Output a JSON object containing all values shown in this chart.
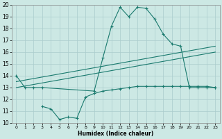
{
  "xlabel": "Humidex (Indice chaleur)",
  "xlim": [
    -0.5,
    23.5
  ],
  "ylim": [
    10,
    20
  ],
  "xticks": [
    0,
    1,
    2,
    3,
    4,
    5,
    6,
    7,
    8,
    9,
    10,
    11,
    12,
    13,
    14,
    15,
    16,
    17,
    18,
    19,
    20,
    21,
    22,
    23
  ],
  "yticks": [
    10,
    11,
    12,
    13,
    14,
    15,
    16,
    17,
    18,
    19,
    20
  ],
  "bg_color": "#cce8e4",
  "grid_color": "#aacccc",
  "line_color": "#1a7a6e",
  "main_curve_x": [
    0,
    1,
    2,
    3,
    9,
    10,
    11,
    12,
    13,
    14,
    15,
    16,
    17,
    18,
    19,
    20,
    21,
    22,
    23
  ],
  "main_curve_y": [
    14,
    13,
    13,
    13,
    12.7,
    15.5,
    18.2,
    19.8,
    19.0,
    19.8,
    19.7,
    18.8,
    17.5,
    16.7,
    16.5,
    13.0,
    13.0,
    13.0,
    13.0
  ],
  "upper_line_x": [
    0,
    23
  ],
  "upper_line_y": [
    13.5,
    16.5
  ],
  "lower_line_x": [
    0,
    23
  ],
  "lower_line_y": [
    13.0,
    16.0
  ],
  "bottom_curve_x": [
    3,
    4,
    5,
    6,
    7,
    8,
    9,
    10,
    11,
    12,
    13,
    14,
    15,
    16,
    17,
    18,
    19,
    20,
    21,
    22,
    23
  ],
  "bottom_curve_y": [
    11.4,
    11.2,
    10.3,
    10.5,
    10.4,
    12.2,
    12.5,
    12.7,
    12.8,
    12.9,
    13.0,
    13.1,
    13.1,
    13.1,
    13.1,
    13.1,
    13.1,
    13.1,
    13.1,
    13.1,
    13.0
  ]
}
